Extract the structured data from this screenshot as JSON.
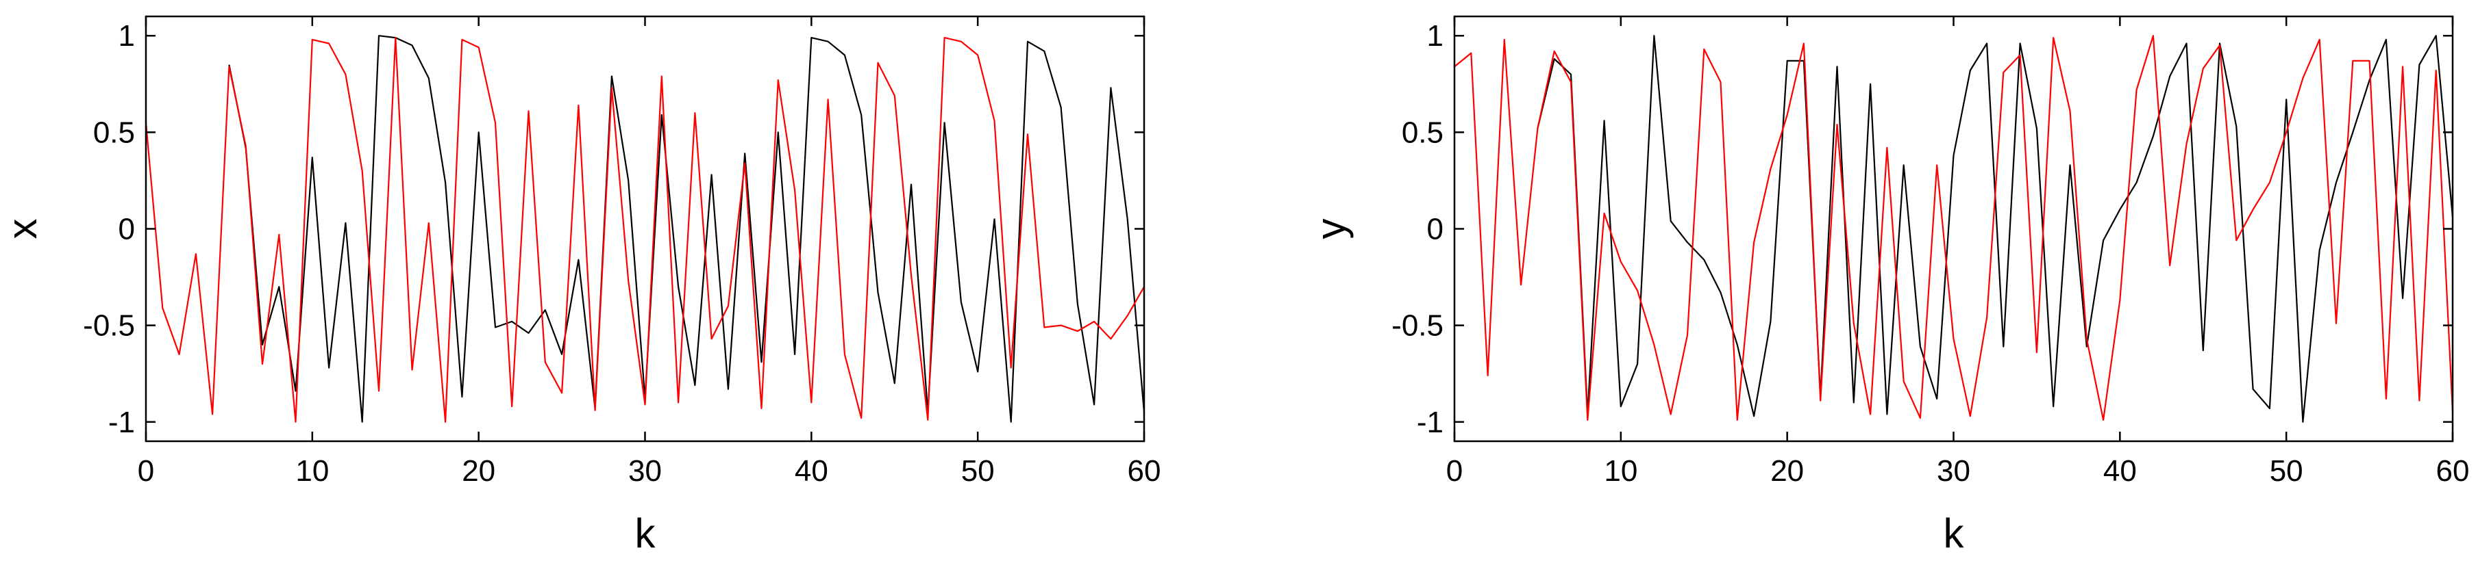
{
  "chart_data": [
    {
      "type": "line",
      "title": "",
      "xlabel": "k",
      "ylabel": "x",
      "xlim": [
        0,
        60
      ],
      "ylim": [
        -1.1,
        1.1
      ],
      "xticks": [
        0,
        10,
        20,
        30,
        40,
        50,
        60
      ],
      "xtick_labels": [
        "0",
        "10",
        "20",
        "30",
        "40",
        "50",
        "60"
      ],
      "yticks": [
        1,
        0.5,
        0,
        -0.5,
        -1
      ],
      "ytick_labels": [
        "1",
        "0.5",
        "0",
        "-0.5",
        "-1"
      ],
      "grid": false,
      "legend": "none",
      "series": [
        {
          "color": "#000000",
          "x": [
            5,
            6,
            7,
            8,
            9,
            10,
            11,
            12,
            13,
            14,
            15,
            16,
            17,
            18,
            19,
            20,
            21,
            22,
            23,
            24,
            25,
            26,
            27,
            28,
            29,
            30,
            31,
            32,
            33,
            34,
            35,
            36,
            37,
            38,
            39,
            40,
            41,
            42,
            43,
            44,
            45,
            46,
            47,
            48,
            49,
            50,
            51,
            52,
            53,
            54,
            55,
            56,
            57,
            58,
            59,
            60
          ],
          "y": [
            0.85,
            0.42,
            -0.6,
            -0.3,
            -0.84,
            0.37,
            -0.72,
            0.03,
            -1.0,
            1.0,
            0.99,
            0.95,
            0.78,
            0.24,
            -0.87,
            0.5,
            -0.51,
            -0.48,
            -0.54,
            -0.42,
            -0.65,
            -0.16,
            -0.93,
            0.79,
            0.25,
            -0.88,
            0.59,
            -0.3,
            -0.81,
            0.28,
            -0.83,
            0.39,
            -0.69,
            0.5,
            -0.65,
            0.99,
            0.97,
            0.9,
            0.59,
            -0.33,
            -0.8,
            0.23,
            -0.95,
            0.55,
            -0.38,
            -0.74,
            0.05,
            -1.0,
            0.97,
            0.92,
            0.63,
            -0.39,
            -0.91,
            0.73,
            0.05,
            -0.95
          ]
        },
        {
          "color": "#ff0000",
          "x": [
            0,
            1,
            2,
            3,
            4,
            5,
            6,
            7,
            8,
            9,
            10,
            11,
            12,
            13,
            14,
            15,
            16,
            17,
            18,
            19,
            20,
            21,
            22,
            23,
            24,
            25,
            26,
            27,
            28,
            29,
            30,
            31,
            32,
            33,
            34,
            35,
            36,
            37,
            38,
            39,
            40,
            41,
            42,
            43,
            44,
            45,
            46,
            47,
            48,
            49,
            50,
            51,
            52,
            53,
            54,
            55,
            56,
            57,
            58,
            59,
            60
          ],
          "y": [
            0.55,
            -0.41,
            -0.65,
            -0.13,
            -0.96,
            0.84,
            0.43,
            -0.7,
            -0.03,
            -1.0,
            0.98,
            0.96,
            0.8,
            0.3,
            -0.84,
            0.99,
            -0.73,
            0.03,
            -1.0,
            0.98,
            0.94,
            0.55,
            -0.92,
            0.61,
            -0.69,
            -0.85,
            0.64,
            -0.94,
            0.73,
            -0.27,
            -0.91,
            0.79,
            -0.9,
            0.6,
            -0.57,
            -0.4,
            0.34,
            -0.93,
            0.77,
            0.2,
            -0.9,
            0.67,
            -0.65,
            -0.98,
            0.86,
            0.69,
            -0.24,
            -0.99,
            0.99,
            0.97,
            0.9,
            0.56,
            -0.72,
            0.49,
            -0.51,
            -0.5,
            -0.53,
            -0.48,
            -0.57,
            -0.45,
            -0.3
          ]
        }
      ]
    },
    {
      "type": "line",
      "title": "",
      "xlabel": "k",
      "ylabel": "y",
      "xlim": [
        0,
        60
      ],
      "ylim": [
        -1.1,
        1.1
      ],
      "xticks": [
        0,
        10,
        20,
        30,
        40,
        50,
        60
      ],
      "xtick_labels": [
        "0",
        "10",
        "20",
        "30",
        "40",
        "50",
        "60"
      ],
      "yticks": [
        1,
        0.5,
        0,
        -0.5,
        -1
      ],
      "ytick_labels": [
        "1",
        "0.5",
        "0",
        "-0.5",
        "-1"
      ],
      "grid": false,
      "legend": "none",
      "series": [
        {
          "color": "#000000",
          "x": [
            5,
            6,
            7,
            8,
            9,
            10,
            11,
            12,
            13,
            14,
            15,
            16,
            17,
            18,
            19,
            20,
            21,
            22,
            23,
            24,
            25,
            26,
            27,
            28,
            29,
            30,
            31,
            32,
            33,
            34,
            35,
            36,
            37,
            38,
            39,
            40,
            41,
            42,
            43,
            44,
            45,
            46,
            47,
            48,
            49,
            50,
            51,
            52,
            53,
            54,
            55,
            56,
            57,
            58,
            59,
            60
          ],
          "y": [
            0.52,
            0.88,
            0.8,
            -0.96,
            0.56,
            -0.92,
            -0.7,
            1.0,
            0.04,
            -0.07,
            -0.16,
            -0.33,
            -0.6,
            -0.97,
            -0.48,
            0.87,
            0.87,
            -0.87,
            0.84,
            -0.9,
            0.75,
            -0.96,
            0.33,
            -0.61,
            -0.88,
            0.38,
            0.82,
            0.96,
            -0.61,
            0.96,
            0.52,
            -0.92,
            0.33,
            -0.61,
            -0.06,
            0.1,
            0.24,
            0.48,
            0.79,
            0.96,
            -0.63,
            0.96,
            0.53,
            -0.83,
            -0.93,
            0.67,
            -1.0,
            -0.11,
            0.24,
            0.5,
            0.77,
            0.98,
            -0.36,
            0.85,
            1.0,
            0.06
          ]
        },
        {
          "color": "#ff0000",
          "x": [
            0,
            1,
            2,
            3,
            4,
            5,
            6,
            7,
            8,
            9,
            10,
            11,
            12,
            13,
            14,
            15,
            16,
            17,
            18,
            19,
            20,
            21,
            22,
            23,
            24,
            25,
            26,
            27,
            28,
            29,
            30,
            31,
            32,
            33,
            34,
            35,
            36,
            37,
            38,
            39,
            40,
            41,
            42,
            43,
            44,
            45,
            46,
            47,
            48,
            49,
            50,
            51,
            52,
            53,
            54,
            55,
            56,
            57,
            58,
            59,
            60
          ],
          "y": [
            0.84,
            0.91,
            -0.76,
            0.98,
            -0.29,
            0.52,
            0.92,
            0.76,
            -0.99,
            0.08,
            -0.17,
            -0.32,
            -0.6,
            -0.96,
            -0.55,
            0.93,
            0.76,
            -0.99,
            -0.07,
            0.31,
            0.59,
            0.96,
            -0.89,
            0.54,
            -0.49,
            -0.96,
            0.42,
            -0.79,
            -0.98,
            0.33,
            -0.57,
            -0.97,
            -0.46,
            0.81,
            0.9,
            -0.64,
            0.99,
            0.61,
            -0.57,
            -0.99,
            -0.37,
            0.72,
            1.0,
            -0.19,
            0.44,
            0.83,
            0.95,
            -0.06,
            0.1,
            0.24,
            0.5,
            0.78,
            0.98,
            -0.49,
            0.87,
            0.87,
            -0.88,
            0.84,
            -0.89,
            0.82,
            -0.95
          ]
        }
      ]
    }
  ]
}
